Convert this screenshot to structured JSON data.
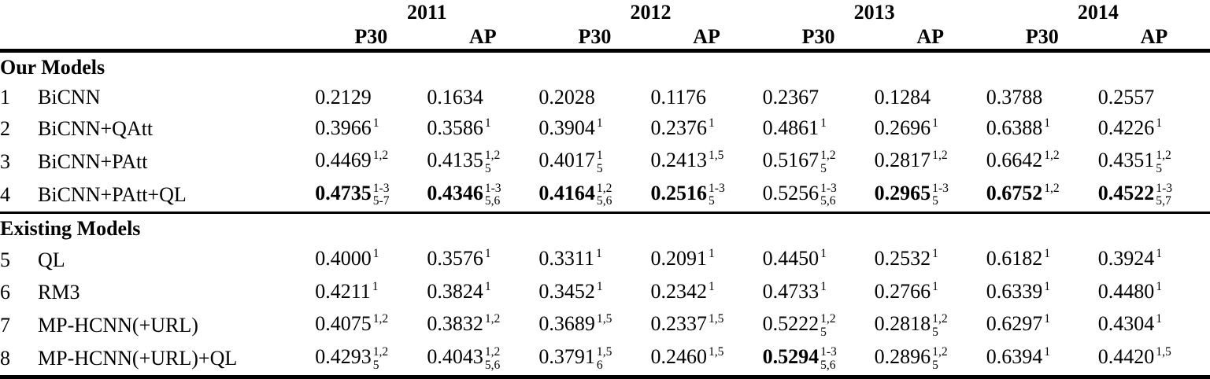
{
  "table": {
    "years": [
      "2011",
      "2012",
      "2013",
      "2014"
    ],
    "metrics": [
      "P30",
      "AP"
    ],
    "sections": [
      {
        "title": "Our Models",
        "rows": [
          {
            "num": "1",
            "model": "BiCNN",
            "cells": [
              {
                "v": "0.2129"
              },
              {
                "v": "0.1634"
              },
              {
                "v": "0.2028"
              },
              {
                "v": "0.1176"
              },
              {
                "v": "0.2367"
              },
              {
                "v": "0.1284"
              },
              {
                "v": "0.3788"
              },
              {
                "v": "0.2557"
              }
            ]
          },
          {
            "num": "2",
            "model": "BiCNN+QAtt",
            "cells": [
              {
                "v": "0.3966",
                "sup": "1"
              },
              {
                "v": "0.3586",
                "sup": "1"
              },
              {
                "v": "0.3904",
                "sup": "1"
              },
              {
                "v": "0.2376",
                "sup": "1"
              },
              {
                "v": "0.4861",
                "sup": "1"
              },
              {
                "v": "0.2696",
                "sup": "1"
              },
              {
                "v": "0.6388",
                "sup": "1"
              },
              {
                "v": "0.4226",
                "sup": "1"
              }
            ]
          },
          {
            "num": "3",
            "model": "BiCNN+PAtt",
            "cells": [
              {
                "v": "0.4469",
                "sup": "1,2"
              },
              {
                "v": "0.4135",
                "sup": "1,2",
                "sub": "5"
              },
              {
                "v": "0.4017",
                "sup": "1",
                "sub": "5"
              },
              {
                "v": "0.2413",
                "sup": "1,5"
              },
              {
                "v": "0.5167",
                "sup": "1,2",
                "sub": "5"
              },
              {
                "v": "0.2817",
                "sup": "1,2"
              },
              {
                "v": "0.6642",
                "sup": "1,2"
              },
              {
                "v": "0.4351",
                "sup": "1,2",
                "sub": "5"
              }
            ]
          },
          {
            "num": "4",
            "model": "BiCNN+PAtt+QL",
            "cells": [
              {
                "v": "0.4735",
                "sup": "1-3",
                "sub": "5-7",
                "b": true
              },
              {
                "v": "0.4346",
                "sup": "1-3",
                "sub": "5,6",
                "b": true
              },
              {
                "v": "0.4164",
                "sup": "1,2",
                "sub": "5,6",
                "b": true
              },
              {
                "v": "0.2516",
                "sup": "1-3",
                "sub": "5",
                "b": true
              },
              {
                "v": "0.5256",
                "sup": "1-3",
                "sub": "5,6"
              },
              {
                "v": "0.2965",
                "sup": "1-3",
                "sub": "5",
                "b": true
              },
              {
                "v": "0.6752",
                "sup": "1,2",
                "b": true
              },
              {
                "v": "0.4522",
                "sup": "1-3",
                "sub": "5,7",
                "b": true
              }
            ]
          }
        ]
      },
      {
        "title": "Existing Models",
        "rows": [
          {
            "num": "5",
            "model": "QL",
            "cells": [
              {
                "v": "0.4000",
                "sup": "1"
              },
              {
                "v": "0.3576",
                "sup": "1"
              },
              {
                "v": "0.3311",
                "sup": "1"
              },
              {
                "v": "0.2091",
                "sup": "1"
              },
              {
                "v": "0.4450",
                "sup": "1"
              },
              {
                "v": "0.2532",
                "sup": "1"
              },
              {
                "v": "0.6182",
                "sup": "1"
              },
              {
                "v": "0.3924",
                "sup": "1"
              }
            ]
          },
          {
            "num": "6",
            "model": "RM3",
            "cells": [
              {
                "v": "0.4211",
                "sup": "1"
              },
              {
                "v": "0.3824",
                "sup": "1"
              },
              {
                "v": "0.3452",
                "sup": "1"
              },
              {
                "v": "0.2342",
                "sup": "1"
              },
              {
                "v": "0.4733",
                "sup": "1"
              },
              {
                "v": "0.2766",
                "sup": "1"
              },
              {
                "v": "0.6339",
                "sup": "1"
              },
              {
                "v": "0.4480",
                "sup": "1"
              }
            ]
          },
          {
            "num": "7",
            "model": "MP-HCNN(+URL)",
            "cells": [
              {
                "v": "0.4075",
                "sup": "1,2"
              },
              {
                "v": "0.3832",
                "sup": "1,2"
              },
              {
                "v": "0.3689",
                "sup": "1,5"
              },
              {
                "v": "0.2337",
                "sup": "1,5"
              },
              {
                "v": "0.5222",
                "sup": "1,2",
                "sub": "5"
              },
              {
                "v": "0.2818",
                "sup": "1,2",
                "sub": "5"
              },
              {
                "v": "0.6297",
                "sup": "1"
              },
              {
                "v": "0.4304",
                "sup": "1"
              }
            ]
          },
          {
            "num": "8",
            "model": "MP-HCNN(+URL)+QL",
            "cells": [
              {
                "v": "0.4293",
                "sup": "1,2",
                "sub": "5"
              },
              {
                "v": "0.4043",
                "sup": "1,2",
                "sub": "5,6"
              },
              {
                "v": "0.3791",
                "sup": "1,5",
                "sub": "6"
              },
              {
                "v": "0.2460",
                "sup": "1,5"
              },
              {
                "v": "0.5294",
                "sup": "1-3",
                "sub": "5,6",
                "b": true
              },
              {
                "v": "0.2896",
                "sup": "1,2",
                "sub": "5"
              },
              {
                "v": "0.6394",
                "sup": "1"
              },
              {
                "v": "0.4420",
                "sup": "1,5"
              }
            ]
          }
        ]
      }
    ]
  }
}
